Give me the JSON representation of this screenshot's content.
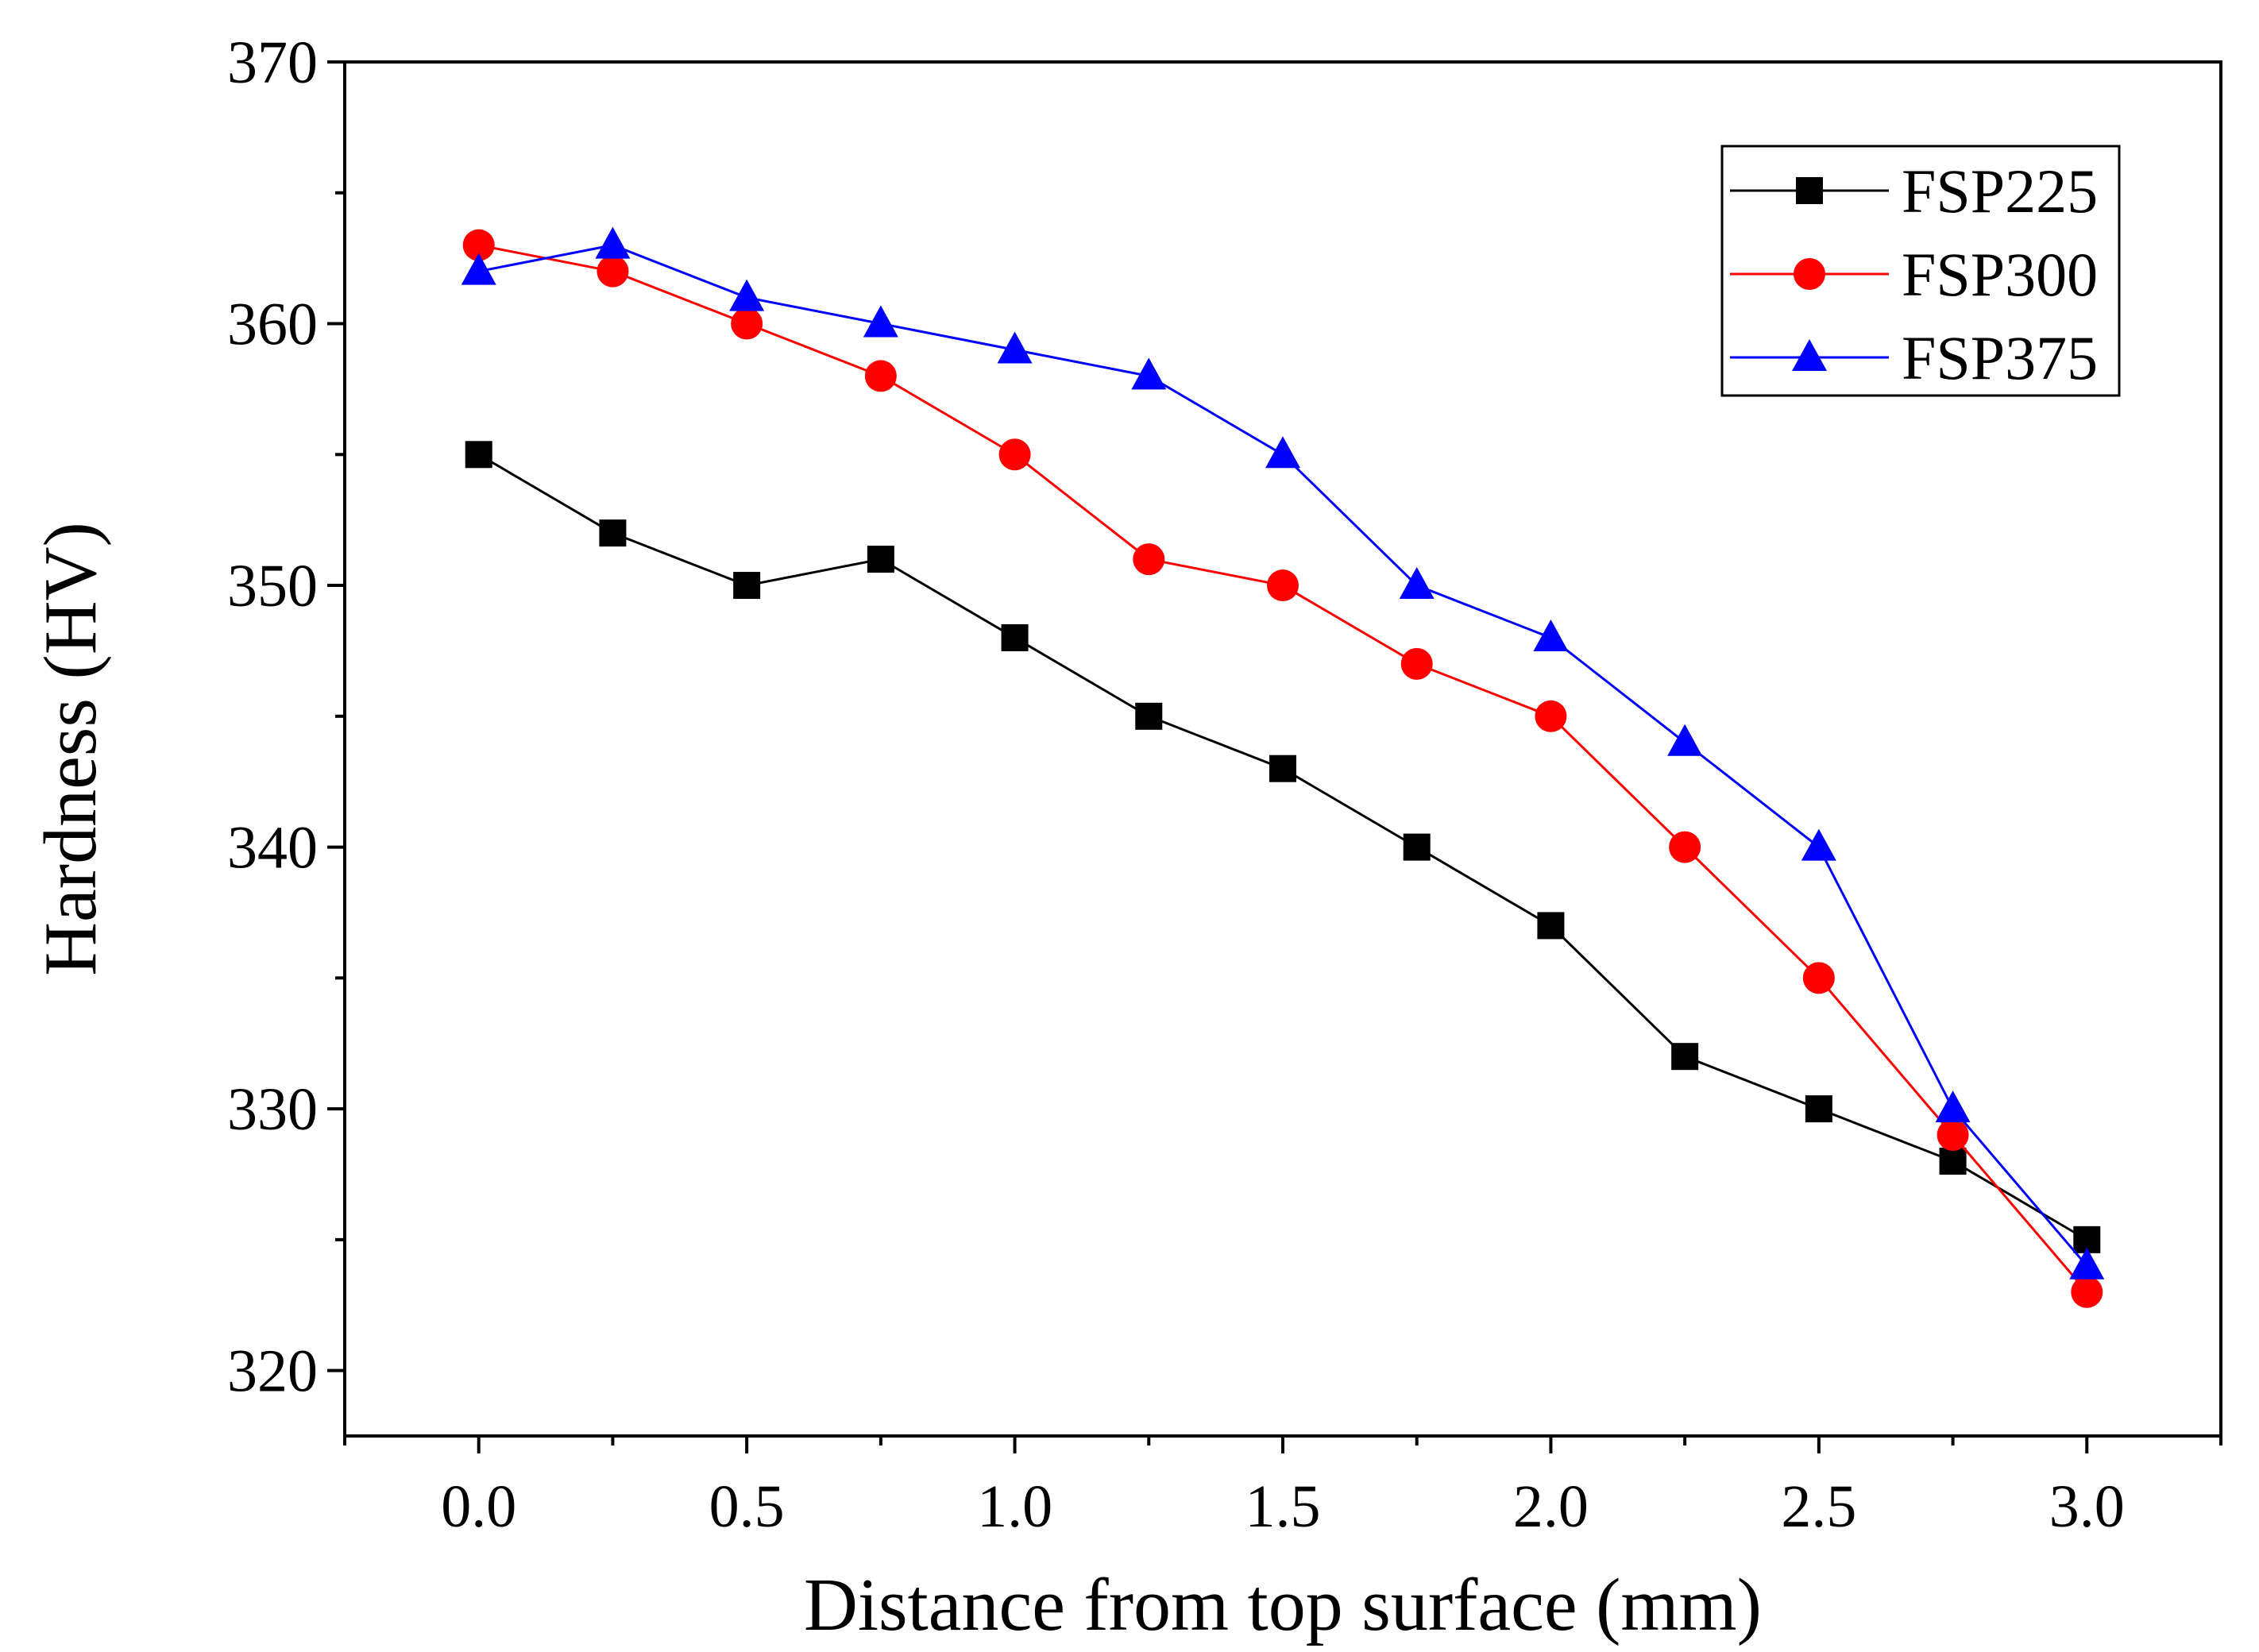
{
  "chart_data": {
    "type": "line",
    "title": "",
    "xlabel": "Distance from top surface (mm)",
    "ylabel": "Hardness (HV)",
    "xlim": [
      -0.25,
      3.25
    ],
    "ylim": [
      317.5,
      370
    ],
    "xticks": [
      0.0,
      0.5,
      1.0,
      1.5,
      2.0,
      2.5,
      3.0
    ],
    "xtick_labels": [
      "0.0",
      "0.5",
      "1.0",
      "1.5",
      "2.0",
      "2.5",
      "3.0"
    ],
    "yticks": [
      320,
      330,
      340,
      350,
      360,
      370
    ],
    "ytick_labels": [
      "320",
      "330",
      "340",
      "350",
      "360",
      "370"
    ],
    "grid": false,
    "legend_position": "top-right",
    "x": [
      0,
      0.25,
      0.5,
      0.75,
      1.0,
      1.25,
      1.5,
      1.75,
      2.0,
      2.25,
      2.5,
      2.75,
      3.0
    ],
    "series": [
      {
        "name": "FSP225",
        "marker": "square",
        "color": "#000000",
        "values": [
          355,
          352,
          350,
          351,
          348,
          345,
          343,
          340,
          337,
          332,
          330,
          328,
          325
        ]
      },
      {
        "name": "FSP300",
        "marker": "circle",
        "color": "#ff0000",
        "values": [
          363,
          362,
          360,
          358,
          355,
          351,
          350,
          347,
          345,
          340,
          335,
          329,
          323
        ]
      },
      {
        "name": "FSP375",
        "marker": "triangle",
        "color": "#0000ff",
        "values": [
          362,
          363,
          361,
          360,
          359,
          358,
          355,
          350,
          348,
          344,
          340,
          330,
          324
        ]
      }
    ]
  }
}
